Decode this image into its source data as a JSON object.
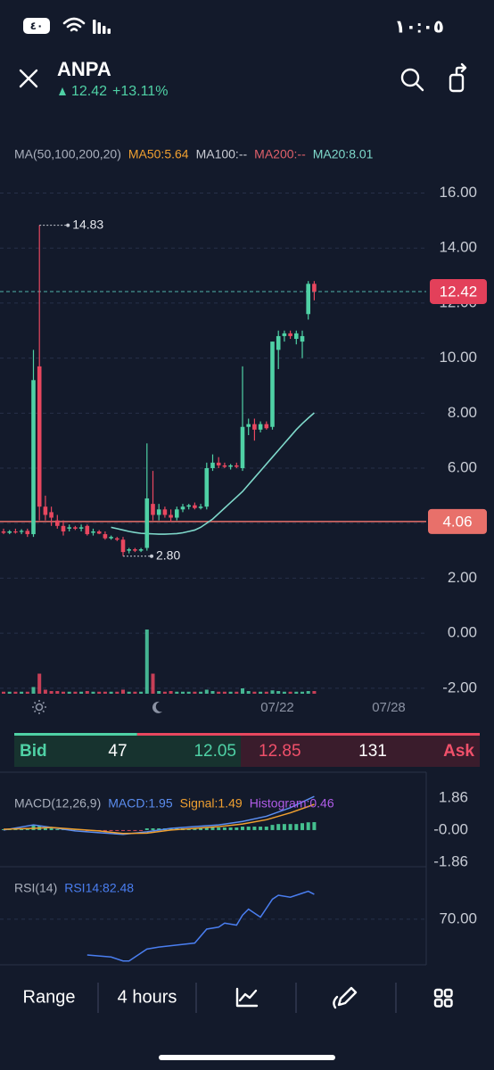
{
  "status_bar": {
    "time": "١٠:٠٥",
    "battery": "٤٠"
  },
  "header": {
    "symbol": "ANPA",
    "price": "12.42",
    "change": "+13.11%"
  },
  "chart_data": [
    {
      "type": "candlestick",
      "indicators": [
        {
          "name": "MA(50,100,200,20)",
          "color": "#aab0bd"
        },
        {
          "name": "MA50:5.64",
          "color": "#f0a030"
        },
        {
          "name": "MA100:--",
          "color": "#c9ccd4"
        },
        {
          "name": "MA200:--",
          "color": "#e0606a"
        },
        {
          "name": "MA20:8.01",
          "color": "#7fd9cb"
        }
      ],
      "up_color": "#4fd1a5",
      "down_color": "#e8475f",
      "open": [
        3.7,
        3.65,
        3.7,
        3.68,
        3.72,
        3.6,
        9.7,
        4.6,
        4.4,
        4.1,
        3.9,
        3.8,
        3.85,
        3.8,
        3.9,
        3.65,
        3.7,
        3.6,
        3.45,
        3.45,
        3.4,
        3.0,
        3.05,
        3.0,
        3.1,
        4.7,
        4.3,
        4.5,
        4.3,
        4.2,
        4.5,
        4.6,
        4.65,
        4.55,
        4.6,
        6.0,
        6.2,
        6.1,
        6.05,
        6.1,
        6.0,
        7.5,
        7.6,
        7.4,
        7.6,
        7.5,
        10.3,
        10.8,
        10.9,
        10.7,
        10.6,
        11.6,
        12.7
      ],
      "high": [
        3.8,
        3.75,
        3.8,
        3.78,
        3.8,
        10.3,
        14.83,
        5.0,
        4.6,
        4.3,
        4.1,
        3.95,
        3.9,
        3.95,
        3.95,
        3.8,
        3.75,
        3.7,
        3.55,
        3.5,
        3.5,
        3.1,
        3.1,
        3.1,
        6.9,
        5.9,
        4.7,
        4.6,
        4.5,
        4.6,
        4.7,
        4.7,
        4.75,
        4.7,
        6.2,
        6.5,
        6.4,
        6.2,
        6.15,
        6.2,
        9.7,
        7.8,
        7.8,
        7.7,
        7.7,
        10.6,
        11.0,
        11.0,
        11.0,
        11.0,
        11.0,
        12.8,
        12.8
      ],
      "low": [
        3.6,
        3.6,
        3.62,
        3.6,
        3.5,
        3.5,
        4.1,
        4.1,
        3.9,
        3.8,
        3.55,
        3.7,
        3.75,
        3.7,
        3.55,
        3.55,
        3.6,
        3.4,
        3.4,
        3.35,
        2.8,
        2.9,
        2.95,
        2.95,
        3.0,
        4.1,
        4.1,
        4.2,
        4.05,
        4.1,
        4.4,
        4.5,
        4.5,
        4.5,
        4.5,
        5.9,
        6.0,
        6.0,
        5.95,
        6.0,
        5.9,
        7.2,
        7.0,
        7.3,
        7.4,
        7.4,
        9.6,
        10.6,
        10.7,
        10.5,
        10.0,
        11.4,
        12.1
      ],
      "close": [
        3.65,
        3.7,
        3.68,
        3.72,
        3.6,
        9.2,
        4.6,
        4.3,
        4.2,
        3.9,
        3.7,
        3.85,
        3.8,
        3.85,
        3.6,
        3.7,
        3.62,
        3.45,
        3.5,
        3.4,
        2.95,
        3.05,
        3.0,
        3.05,
        4.9,
        4.3,
        4.5,
        4.3,
        4.2,
        4.5,
        4.6,
        4.65,
        4.55,
        4.6,
        6.0,
        6.2,
        6.1,
        6.05,
        6.1,
        6.05,
        7.5,
        7.6,
        7.4,
        7.6,
        7.45,
        10.6,
        10.8,
        10.9,
        10.8,
        10.9,
        10.8,
        12.7,
        12.42
      ],
      "ma20": [
        null,
        null,
        null,
        null,
        null,
        null,
        null,
        null,
        null,
        null,
        null,
        null,
        null,
        null,
        null,
        null,
        null,
        null,
        3.85,
        3.8,
        3.75,
        3.7,
        3.66,
        3.63,
        3.62,
        3.61,
        3.6,
        3.6,
        3.61,
        3.62,
        3.65,
        3.7,
        3.75,
        3.85,
        4.0,
        4.15,
        4.35,
        4.55,
        4.75,
        4.95,
        5.15,
        5.4,
        5.65,
        5.9,
        6.15,
        6.4,
        6.65,
        6.9,
        7.15,
        7.4,
        7.62,
        7.82,
        8.01
      ],
      "ma20_color": "#7fd9cb",
      "volume": [
        3,
        3,
        3,
        3,
        3,
        10,
        30,
        6,
        4,
        4,
        3,
        3,
        3,
        3,
        4,
        3,
        3,
        3,
        3,
        3,
        6,
        3,
        3,
        3,
        96,
        30,
        4,
        3,
        4,
        3,
        3,
        3,
        3,
        3,
        6,
        4,
        3,
        3,
        3,
        3,
        8,
        4,
        3,
        3,
        3,
        5,
        4,
        3,
        3,
        3,
        3,
        4,
        4
      ],
      "max_label": "14.83",
      "min_label": "2.80",
      "last_price": 12.42,
      "last_price_color": "#e3405a",
      "price_line": 4.06,
      "price_line_color": "#e8706a",
      "x_labels": [
        "07/22",
        "07/28"
      ],
      "ylim": [
        -2.2,
        16.6
      ],
      "yticks": [
        {
          "value": 16,
          "label": "16.00"
        },
        {
          "value": 14,
          "label": "14.00"
        },
        {
          "value": 12,
          "label": "12.00"
        },
        {
          "value": 10,
          "label": "10.00"
        },
        {
          "value": 8,
          "label": "8.00"
        },
        {
          "value": 6,
          "label": "6.00"
        },
        {
          "value": 4,
          "label": "4.00"
        },
        {
          "value": 2,
          "label": "2.00"
        },
        {
          "value": 0,
          "label": "0.00"
        },
        {
          "value": -2,
          "label": "-2.00"
        }
      ],
      "grid": true
    },
    {
      "type": "macd",
      "title": "MACD(12,26,9)",
      "series": [
        {
          "name": "MACD:1.95",
          "color": "#5b8def",
          "x": [
            0,
            5,
            8,
            12,
            16,
            20,
            24,
            28,
            32,
            36,
            40,
            44,
            48,
            52
          ],
          "values": [
            0.0,
            0.3,
            0.15,
            -0.05,
            -0.15,
            -0.25,
            -0.1,
            0.1,
            0.2,
            0.3,
            0.5,
            0.8,
            1.3,
            1.95
          ]
        },
        {
          "name": "Signal:1.49",
          "color": "#f0a030",
          "x": [
            0,
            5,
            8,
            12,
            16,
            20,
            24,
            28,
            32,
            36,
            40,
            44,
            48,
            52
          ],
          "values": [
            0.05,
            0.1,
            0.15,
            0.05,
            -0.05,
            -0.2,
            -0.18,
            0.0,
            0.1,
            0.2,
            0.35,
            0.6,
            1.0,
            1.49
          ]
        },
        {
          "name": "Histogram:0.46",
          "color": "#b05ce8",
          "values": [
            0.05,
            0.05,
            0.05,
            0.05,
            0.05,
            0.3,
            0.25,
            0.15,
            0.1,
            0.05,
            0.02,
            0.02,
            0.02,
            0.02,
            -0.05,
            -0.05,
            -0.05,
            -0.05,
            -0.05,
            -0.05,
            -0.05,
            -0.05,
            -0.05,
            -0.05,
            0.1,
            0.1,
            0.1,
            0.1,
            0.1,
            0.1,
            0.1,
            0.1,
            0.1,
            0.1,
            0.15,
            0.15,
            0.15,
            0.15,
            0.15,
            0.15,
            0.2,
            0.2,
            0.2,
            0.2,
            0.2,
            0.3,
            0.35,
            0.35,
            0.35,
            0.35,
            0.4,
            0.45,
            0.46
          ]
        }
      ],
      "bar_colors": [
        "#45c08f",
        "#d9485c"
      ],
      "ylim": [
        -2.02,
        3.15
      ],
      "yticks": [
        {
          "value": 1.86,
          "label": "1.86"
        },
        {
          "value": 0,
          "label": "-0.00"
        },
        {
          "value": -1.86,
          "label": "-1.86"
        }
      ]
    },
    {
      "type": "line",
      "title": "RSI(14)",
      "series": [
        {
          "name": "RSI14:82.48",
          "color": "#4a7ef0",
          "x": [
            14,
            18,
            20,
            21,
            24,
            26,
            29,
            32,
            34,
            36,
            37,
            39,
            40,
            41,
            42,
            43,
            45,
            46,
            48,
            50,
            51,
            52
          ],
          "values": [
            52,
            51,
            49,
            49,
            55,
            56,
            57,
            58,
            65,
            66,
            68,
            67,
            72,
            75,
            73,
            71,
            80,
            82,
            81,
            83,
            84,
            82.48
          ]
        }
      ],
      "ylim": [
        48,
        90.5
      ],
      "yticks": [
        {
          "value": 70,
          "label": "70.00"
        }
      ]
    }
  ],
  "quote": {
    "bid_label": "Bid",
    "bid_size": 47,
    "bid_price": 12.05,
    "ask_price": 12.85,
    "ask_size": 131,
    "ask_label": "Ask"
  },
  "toolbar": {
    "range": "Range",
    "interval": "4 hours"
  }
}
